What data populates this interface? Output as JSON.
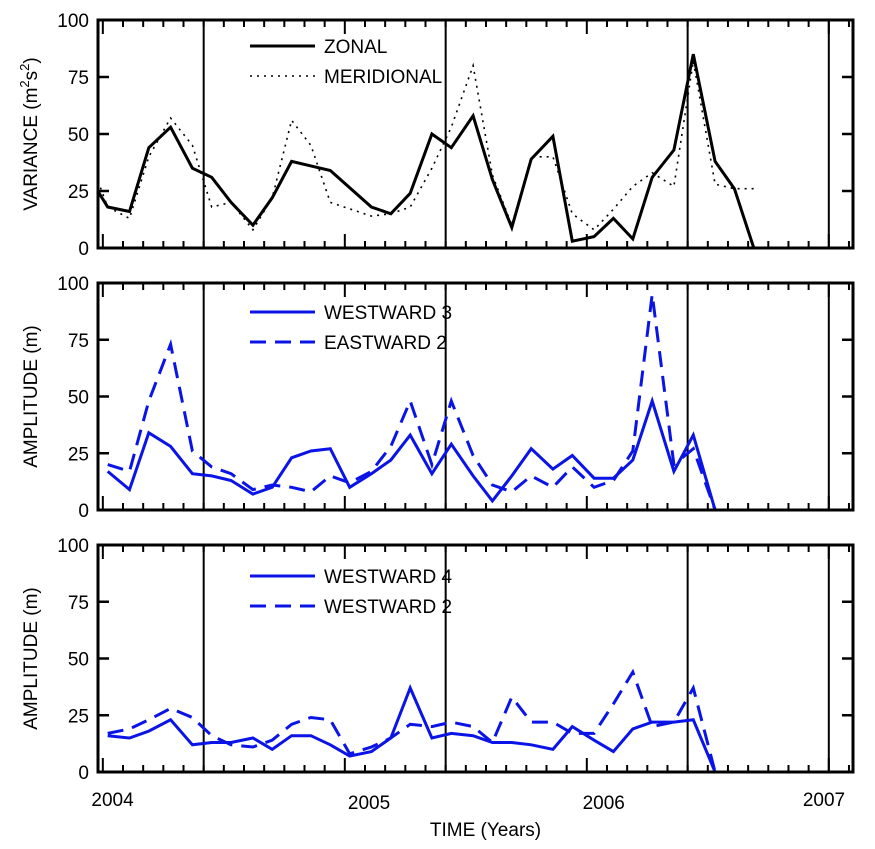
{
  "chart_data": [
    {
      "type": "line",
      "ylabel": "VARIANCE (m²s²)",
      "ylabel_parts": [
        "VARIANCE (m",
        "2",
        "s",
        "2",
        ")"
      ],
      "ylim": [
        0,
        100
      ],
      "yticks": [
        0,
        25,
        50,
        75,
        100
      ],
      "xlim": [
        2003.98,
        2007.1
      ],
      "legend_position": "upper-left",
      "series": [
        {
          "name": "ZONAL",
          "color": "#000000",
          "style": "solid",
          "x": [
            2003.95,
            2004.02,
            2004.11,
            2004.19,
            2004.28,
            2004.37,
            2004.45,
            2004.53,
            2004.62,
            2004.7,
            2004.78,
            2004.86,
            2004.94,
            2005.11,
            2005.19,
            2005.27,
            2005.36,
            2005.44,
            2005.53,
            2005.61,
            2005.69,
            2005.77,
            2005.86,
            2005.94,
            2006.03,
            2006.11,
            2006.19,
            2006.27,
            2006.36,
            2006.44,
            2006.53,
            2006.61,
            2006.69,
            2006.78,
            2006.86,
            2006.94,
            2007.02,
            2007.1
          ],
          "y": [
            30,
            18,
            16,
            44,
            53,
            35,
            31,
            20,
            10,
            22,
            38,
            36,
            34,
            18,
            15,
            24,
            50,
            44,
            58,
            30,
            9,
            39,
            49,
            3,
            5,
            13,
            4,
            31,
            43,
            85,
            38,
            26,
            0,
            0,
            0,
            0,
            0,
            0
          ]
        },
        {
          "name": "MERIDIONAL",
          "color": "#000000",
          "style": "dotted",
          "x": [
            2003.95,
            2004.02,
            2004.11,
            2004.19,
            2004.28,
            2004.37,
            2004.45,
            2004.53,
            2004.62,
            2004.7,
            2004.78,
            2004.86,
            2004.94,
            2005.11,
            2005.19,
            2005.27,
            2005.36,
            2005.44,
            2005.53,
            2005.61,
            2005.69,
            2005.77,
            2005.86,
            2005.94,
            2006.03,
            2006.11,
            2006.19,
            2006.27,
            2006.36,
            2006.44,
            2006.53,
            2006.61,
            2006.69
          ],
          "y": [
            38,
            18,
            13,
            40,
            57,
            45,
            18,
            20,
            8,
            22,
            56,
            45,
            20,
            14,
            15,
            18,
            35,
            53,
            80,
            32,
            10,
            40,
            40,
            15,
            8,
            17,
            27,
            33,
            27,
            82,
            28,
            26,
            26
          ]
        }
      ]
    },
    {
      "type": "line",
      "ylabel": "AMPLITUDE (m)",
      "ylim": [
        0,
        100
      ],
      "yticks": [
        0,
        25,
        50,
        75,
        100
      ],
      "xlim": [
        2003.98,
        2007.1
      ],
      "legend_position": "upper-left",
      "series": [
        {
          "name": "WESTWARD 3",
          "color": "#0a14e6",
          "style": "solid",
          "x": [
            2004.02,
            2004.11,
            2004.19,
            2004.28,
            2004.37,
            2004.45,
            2004.53,
            2004.62,
            2004.7,
            2004.78,
            2004.86,
            2004.94,
            2005.02,
            2005.11,
            2005.19,
            2005.27,
            2005.36,
            2005.44,
            2005.53,
            2005.61,
            2005.69,
            2005.77,
            2005.86,
            2005.94,
            2006.03,
            2006.11,
            2006.19,
            2006.27,
            2006.36,
            2006.44,
            2006.53,
            2006.61
          ],
          "y": [
            17,
            9,
            34,
            28,
            16,
            15,
            13,
            7,
            10,
            23,
            26,
            27,
            10,
            16,
            22,
            33,
            16,
            29,
            15,
            4,
            15,
            27,
            18,
            24,
            14,
            14,
            22,
            48,
            17,
            33,
            0,
            0
          ]
        },
        {
          "name": "EASTWARD 2",
          "color": "#0a14e6",
          "style": "dashed",
          "x": [
            2004.02,
            2004.11,
            2004.19,
            2004.28,
            2004.37,
            2004.45,
            2004.53,
            2004.62,
            2004.7,
            2004.78,
            2004.86,
            2004.94,
            2005.02,
            2005.11,
            2005.19,
            2005.27,
            2005.36,
            2005.44,
            2005.53,
            2005.61,
            2005.69,
            2005.77,
            2005.86,
            2005.94,
            2006.03,
            2006.11,
            2006.19,
            2006.27,
            2006.36,
            2006.44,
            2006.53
          ],
          "y": [
            20,
            17,
            48,
            73,
            26,
            19,
            16,
            9,
            11,
            10,
            8,
            15,
            12,
            17,
            28,
            48,
            20,
            48,
            24,
            11,
            8,
            15,
            10,
            19,
            10,
            13,
            26,
            95,
            20,
            27,
            0
          ]
        }
      ]
    },
    {
      "type": "line",
      "ylabel": "AMPLITUDE (m)",
      "xlabel": "TIME (Years)",
      "ylim": [
        0,
        100
      ],
      "yticks": [
        0,
        25,
        50,
        75,
        100
      ],
      "xlim": [
        2003.98,
        2007.1
      ],
      "xticks": [
        2004,
        2005,
        2006,
        2007
      ],
      "legend_position": "upper-left",
      "series": [
        {
          "name": "WESTWARD 4",
          "color": "#0a14e6",
          "style": "solid",
          "x": [
            2004.02,
            2004.11,
            2004.19,
            2004.28,
            2004.37,
            2004.45,
            2004.53,
            2004.62,
            2004.7,
            2004.78,
            2004.86,
            2004.94,
            2005.02,
            2005.11,
            2005.19,
            2005.27,
            2005.36,
            2005.44,
            2005.53,
            2005.61,
            2005.69,
            2005.77,
            2005.86,
            2005.94,
            2006.03,
            2006.11,
            2006.19,
            2006.27,
            2006.36,
            2006.44,
            2006.53,
            2006.61
          ],
          "y": [
            16,
            15,
            18,
            23,
            12,
            13,
            13,
            15,
            10,
            16,
            16,
            12,
            7,
            9,
            15,
            37,
            15,
            17,
            16,
            13,
            13,
            12,
            10,
            20,
            14,
            9,
            19,
            22,
            22,
            23,
            0,
            0
          ]
        },
        {
          "name": "WESTWARD 2",
          "color": "#0a14e6",
          "style": "dashed",
          "x": [
            2004.02,
            2004.11,
            2004.19,
            2004.28,
            2004.37,
            2004.45,
            2004.53,
            2004.62,
            2004.7,
            2004.78,
            2004.86,
            2004.94,
            2005.02,
            2005.11,
            2005.19,
            2005.27,
            2005.36,
            2005.44,
            2005.53,
            2005.61,
            2005.69,
            2005.77,
            2005.86,
            2005.94,
            2006.03,
            2006.11,
            2006.19,
            2006.27,
            2006.36,
            2006.44,
            2006.53
          ],
          "y": [
            17,
            19,
            23,
            28,
            24,
            16,
            12,
            11,
            14,
            21,
            24,
            23,
            8,
            11,
            15,
            21,
            20,
            22,
            20,
            13,
            33,
            22,
            22,
            17,
            17,
            30,
            44,
            20,
            22,
            37,
            0
          ]
        }
      ]
    }
  ]
}
